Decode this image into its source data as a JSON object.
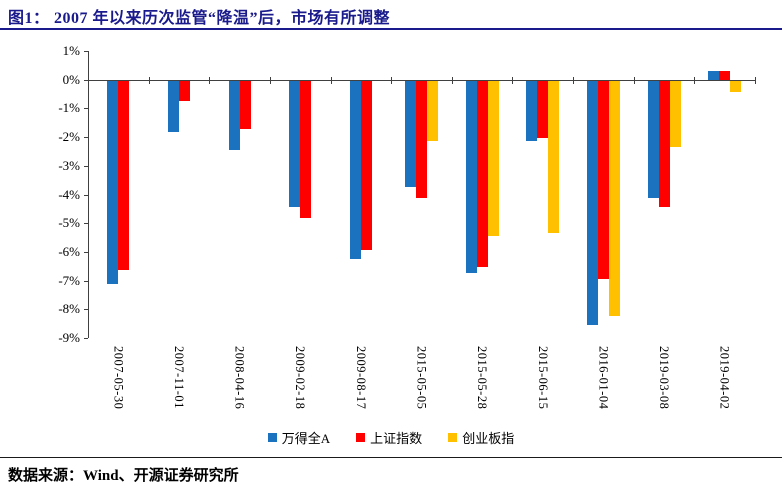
{
  "header": {
    "title": "图1：  2007 年以来历次监管“降温”后，市场有所调整"
  },
  "chart_data": {
    "type": "bar",
    "title": "2007 年以来历次监管“降温”后，市场有所调整",
    "categories": [
      "2007-05-30",
      "2007-11-01",
      "2008-04-16",
      "2009-02-18",
      "2009-08-17",
      "2015-05-05",
      "2015-05-28",
      "2015-06-15",
      "2016-01-04",
      "2019-03-08",
      "2019-04-02"
    ],
    "series": [
      {
        "name": "万得全A",
        "color": "#1B72BF",
        "values": [
          -7.1,
          -1.8,
          -2.4,
          -4.4,
          -6.2,
          -3.7,
          -6.7,
          -2.1,
          -8.5,
          -4.1,
          0.3
        ]
      },
      {
        "name": "上证指数",
        "color": "#FE0000",
        "values": [
          -6.6,
          -0.7,
          -1.7,
          -4.8,
          -5.9,
          -4.1,
          -6.5,
          -2.0,
          -6.9,
          -4.4,
          0.3
        ]
      },
      {
        "name": "创业板指",
        "color": "#FFC000",
        "values": [
          null,
          null,
          null,
          null,
          null,
          -2.1,
          -5.4,
          -5.3,
          -8.2,
          -2.3,
          -0.4
        ]
      }
    ],
    "ylim": [
      -9,
      1
    ],
    "ytick_labels": [
      "1%",
      "0%",
      "-1%",
      "-2%",
      "-3%",
      "-4%",
      "-5%",
      "-6%",
      "-7%",
      "-8%",
      "-9%"
    ],
    "grid": false,
    "legend_position": "bottom",
    "xlabel": "",
    "ylabel": ""
  },
  "footer": {
    "source": "数据来源：Wind、开源证券研究所"
  },
  "colors": {
    "title_navy": "#1A1A8C",
    "header_rule": "#1A1A8C",
    "axis": "#404040",
    "footer_rule": "#1a1a1a",
    "text": "#000000"
  }
}
